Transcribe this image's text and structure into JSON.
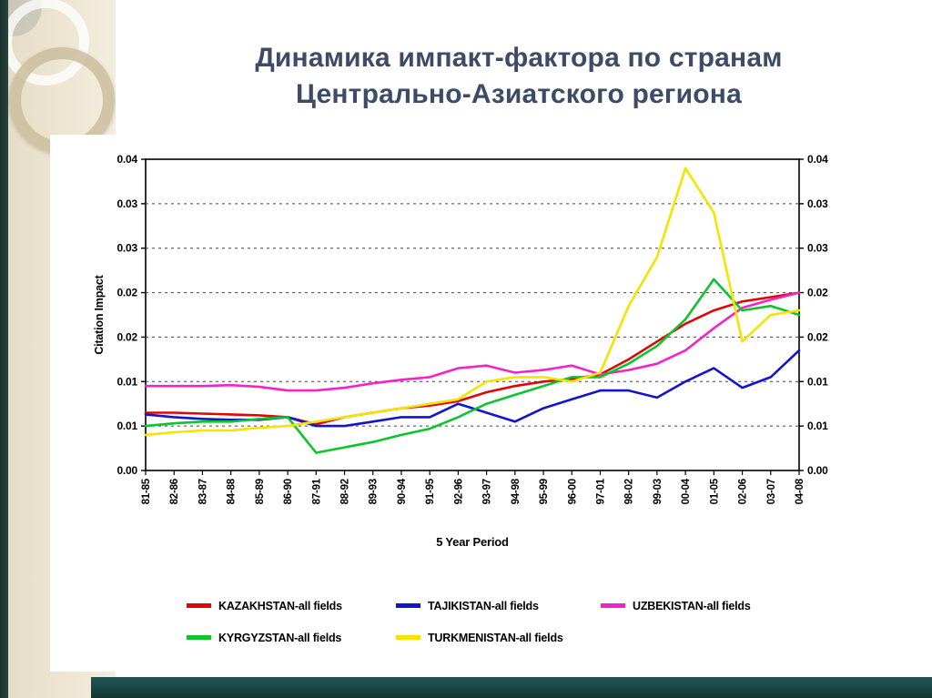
{
  "slide": {
    "title_line1": "Динамика импакт-фактора по странам",
    "title_line2": "Центрально-Азиатского региона"
  },
  "colors": {
    "title_text": "#3e4b66",
    "left_band": "#ece4d0",
    "left_strip": "#1b332e",
    "bottom_bar": "#1b4a48",
    "plot_border": "#000000",
    "gridline": "#444444"
  },
  "chart_data": {
    "type": "line",
    "title": "",
    "xlabel": "5 Year Period",
    "ylabel": "Citation Impact",
    "ylim": [
      0,
      0.035
    ],
    "ytick_step": 0.005,
    "ytick_labels": [
      "0.00",
      "0.01",
      "0.01",
      "0.02",
      "0.02",
      "0.03",
      "0.03",
      "0.04"
    ],
    "grid": "horizontal-dashed",
    "legend_position": "bottom",
    "categories": [
      "81-85",
      "82-86",
      "83-87",
      "84-88",
      "85-89",
      "86-90",
      "87-91",
      "88-92",
      "89-93",
      "90-94",
      "91-95",
      "92-96",
      "93-97",
      "94-98",
      "95-99",
      "96-00",
      "97-01",
      "98-02",
      "99-03",
      "00-04",
      "01-05",
      "02-06",
      "03-07",
      "04-08"
    ],
    "series": [
      {
        "name": "KAZAKHSTAN-all fields",
        "color": "#dd0806",
        "values": [
          0.0065,
          0.0065,
          0.0064,
          0.0063,
          0.0062,
          0.006,
          0.0052,
          0.006,
          0.0065,
          0.007,
          0.0073,
          0.0078,
          0.0088,
          0.0095,
          0.01,
          0.0103,
          0.0108,
          0.0125,
          0.0145,
          0.0165,
          0.018,
          0.019,
          0.0195,
          0.02
        ]
      },
      {
        "name": "TAJIKISTAN-all fields",
        "color": "#1414cc",
        "values": [
          0.0063,
          0.006,
          0.0058,
          0.0057,
          0.0057,
          0.006,
          0.005,
          0.005,
          0.0055,
          0.006,
          0.006,
          0.0075,
          0.0065,
          0.0055,
          0.007,
          0.008,
          0.009,
          0.009,
          0.0082,
          0.01,
          0.0115,
          0.0093,
          0.0105,
          0.0135
        ]
      },
      {
        "name": "UZBEKISTAN-all fields",
        "color": "#f422c8",
        "values": [
          0.0095,
          0.0095,
          0.0095,
          0.0096,
          0.0094,
          0.009,
          0.009,
          0.0093,
          0.0098,
          0.0102,
          0.0105,
          0.0115,
          0.0118,
          0.011,
          0.0113,
          0.0118,
          0.0108,
          0.0113,
          0.012,
          0.0135,
          0.016,
          0.0183,
          0.0192,
          0.02
        ]
      },
      {
        "name": "KYRGYZSTAN-all fields",
        "color": "#0cc42c",
        "values": [
          0.005,
          0.0053,
          0.0055,
          0.0055,
          0.0058,
          0.006,
          0.002,
          0.0026,
          0.0032,
          0.004,
          0.0047,
          0.006,
          0.0075,
          0.0085,
          0.0095,
          0.0105,
          0.0105,
          0.012,
          0.014,
          0.017,
          0.0215,
          0.018,
          0.0185,
          0.0175
        ]
      },
      {
        "name": "TURKMENISTAN-all fields",
        "color": "#f4e400",
        "values": [
          0.004,
          0.0043,
          0.0045,
          0.0045,
          0.0048,
          0.005,
          0.0055,
          0.006,
          0.0065,
          0.007,
          0.0075,
          0.008,
          0.01,
          0.0105,
          0.0105,
          0.01,
          0.011,
          0.0185,
          0.024,
          0.034,
          0.029,
          0.0145,
          0.0175,
          0.018
        ]
      }
    ],
    "legend_rows": [
      [
        "KAZAKHSTAN-all fields",
        "TAJIKISTAN-all fields",
        "UZBEKISTAN-all fields"
      ],
      [
        "KYRGYZSTAN-all fields",
        "TURKMENISTAN-all fields"
      ]
    ]
  }
}
